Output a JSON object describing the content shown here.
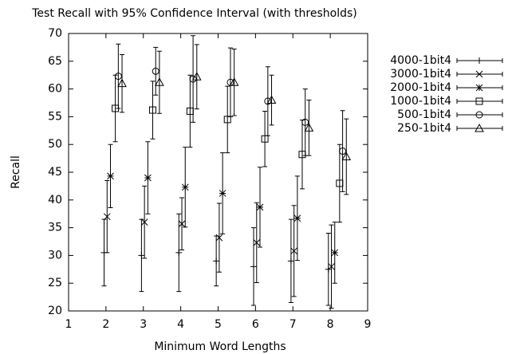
{
  "chart_data": {
    "type": "errorbar",
    "title": "Test Recall with 95% Confidence Interval (with thresholds)",
    "x_label": "Minimum Word Lengths",
    "y_label": "Recall",
    "xlim": [
      1,
      9
    ],
    "xticks": [
      1,
      2,
      3,
      4,
      5,
      6,
      7,
      8,
      9
    ],
    "ylim": [
      20,
      70
    ],
    "yticks": [
      20,
      25,
      30,
      35,
      40,
      45,
      50,
      55,
      60,
      65,
      70
    ],
    "legend": "outside-top-right",
    "series": [
      {
        "name": "4000-1bit4",
        "color": "#000000",
        "marker": "plus",
        "x": [
          1.95,
          2.95,
          3.95,
          4.95,
          5.95,
          6.95,
          7.95
        ],
        "values": [
          30.5,
          30,
          30.5,
          29,
          28,
          29,
          27.5
        ],
        "errors": [
          6,
          6.5,
          7,
          4.5,
          7,
          7.5,
          6.5
        ]
      },
      {
        "name": "3000-1bit4",
        "color": "#000000",
        "marker": "cross",
        "x": [
          2.03,
          3.03,
          4.03,
          5.03,
          6.03,
          7.03,
          8.03
        ],
        "values": [
          37,
          36,
          35.7,
          33.2,
          32.3,
          30.8,
          28
        ],
        "errors": [
          6.5,
          6.5,
          4.7,
          6.2,
          7.2,
          8.2,
          7.5
        ]
      },
      {
        "name": "2000-1bit4",
        "color": "#000000",
        "marker": "star",
        "x": [
          2.12,
          3.12,
          4.12,
          5.12,
          6.12,
          7.12,
          8.12
        ],
        "values": [
          44.3,
          44,
          42.3,
          41.2,
          38.7,
          36.7,
          30.5
        ],
        "errors": [
          5.7,
          6.5,
          7.2,
          7.3,
          7.2,
          7.6,
          5.5
        ]
      },
      {
        "name": "1000-1bit4",
        "color": "#000000",
        "marker": "square",
        "x": [
          2.25,
          3.25,
          4.25,
          5.25,
          6.25,
          7.25,
          8.25
        ],
        "values": [
          56.5,
          56.2,
          56,
          54.5,
          51,
          48.2,
          43
        ],
        "errors": [
          6,
          5.2,
          6.5,
          6,
          5,
          6.2,
          7
        ]
      },
      {
        "name": "500-1bit4",
        "color": "#000000",
        "marker": "circle",
        "x": [
          2.33,
          3.33,
          4.33,
          5.33,
          6.33,
          7.33,
          8.33
        ],
        "values": [
          62.3,
          63.2,
          61.8,
          61.2,
          57.8,
          54,
          48.8
        ],
        "errors": [
          5.8,
          4.3,
          7.8,
          6.2,
          6.2,
          6,
          7.3
        ]
      },
      {
        "name": "250-1bit4",
        "color": "#000000",
        "marker": "triangle",
        "x": [
          2.43,
          3.43,
          4.43,
          5.43,
          6.43,
          7.43,
          8.43
        ],
        "values": [
          61,
          61.2,
          62.2,
          61.2,
          58,
          53,
          47.8
        ],
        "errors": [
          5.2,
          5.6,
          5.8,
          6,
          4.5,
          5,
          6.8
        ]
      }
    ]
  }
}
